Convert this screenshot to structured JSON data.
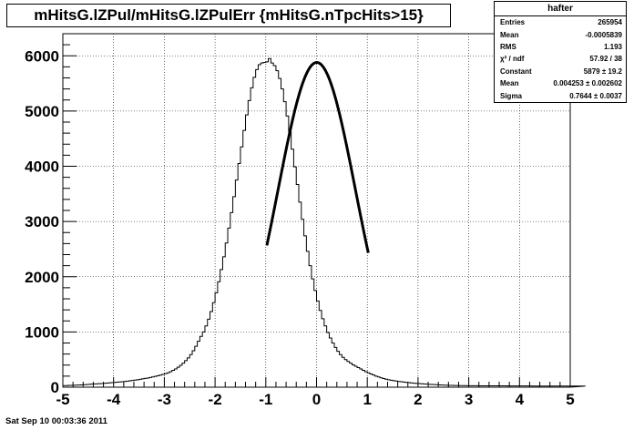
{
  "chart_data": {
    "type": "histogram",
    "title": "mHitsG.lZPul/mHitsG.lZPulErr {mHitsG.nTpcHits>15}",
    "xlim": [
      -5,
      5
    ],
    "ylim": [
      0,
      6400
    ],
    "xticks": [
      "-5",
      "-4",
      "-3",
      "-2",
      "-1",
      "0",
      "1",
      "2",
      "3",
      "4",
      "5"
    ],
    "yticks": [
      "0",
      "1000",
      "2000",
      "3000",
      "4000",
      "5000",
      "6000"
    ],
    "grid": true,
    "bin_width": 0.05,
    "series": [
      {
        "values": [
          28,
          28,
          32,
          33,
          36,
          38,
          40,
          41,
          45,
          48,
          52,
          55,
          58,
          60,
          64,
          67,
          71,
          75,
          78,
          82,
          86,
          90,
          94,
          99,
          104,
          110,
          116,
          122,
          128,
          135,
          142,
          150,
          158,
          166,
          175,
          185,
          195,
          206,
          218,
          230,
          245,
          260,
          280,
          305,
          330,
          360,
          395,
          435,
          480,
          530,
          590,
          660,
          740,
          830,
          920,
          1000,
          1110,
          1230,
          1370,
          1530,
          1710,
          1910,
          2130,
          2360,
          2610,
          2880,
          3160,
          3450,
          3750,
          4050,
          4350,
          4650,
          4930,
          5190,
          5420,
          5610,
          5750,
          5840,
          5870,
          5880,
          5890,
          5950,
          5870,
          5820,
          5730,
          5590,
          5400,
          5170,
          4910,
          4620,
          4310,
          3990,
          3670,
          3350,
          3040,
          2740,
          2460,
          2200,
          1960,
          1750,
          1560,
          1390,
          1240,
          1110,
          990,
          890,
          800,
          720,
          650,
          590,
          540,
          500,
          465,
          435,
          405,
          380,
          355,
          330,
          305,
          280,
          260,
          240,
          220,
          200,
          185,
          170,
          157,
          145,
          135,
          126,
          118,
          111,
          104,
          98,
          92,
          87,
          82,
          77,
          73,
          69,
          65,
          62,
          58,
          55,
          52,
          50,
          47,
          45,
          42,
          40,
          38,
          36,
          34,
          33,
          31,
          30,
          29,
          28,
          28,
          27,
          27,
          26,
          26,
          26,
          25,
          25,
          25,
          25,
          25,
          24,
          24,
          24,
          24,
          24,
          24,
          23,
          23,
          23,
          23,
          23,
          22,
          22,
          22,
          22,
          22,
          21,
          21,
          21,
          21,
          21,
          21,
          20,
          20,
          20,
          20,
          20,
          20,
          20,
          20,
          20,
          20,
          20,
          20,
          20,
          20,
          20
        ]
      }
    ],
    "fit": {
      "type": "gaus",
      "range": [
        -0.98,
        1.02
      ],
      "constant": 5879,
      "mean": 0.004253,
      "sigma": 0.7644
    }
  },
  "stats": {
    "title": "hafter",
    "rows": [
      {
        "label": "Entries",
        "value": "265954"
      },
      {
        "label": "Mean",
        "value": "-0.0005839"
      },
      {
        "label": "RMS",
        "value": "1.193"
      },
      {
        "label": "χ² / ndf",
        "value": "57.92 / 38"
      },
      {
        "label": "Constant",
        "value": "5879 ± 19.2"
      },
      {
        "label": "Mean",
        "value": "0.004253 ± 0.002602"
      },
      {
        "label": "Sigma",
        "value": "0.7644 ± 0.0037"
      }
    ]
  },
  "footer": {
    "date": "Sat Sep 10 00:03:36 2011"
  }
}
